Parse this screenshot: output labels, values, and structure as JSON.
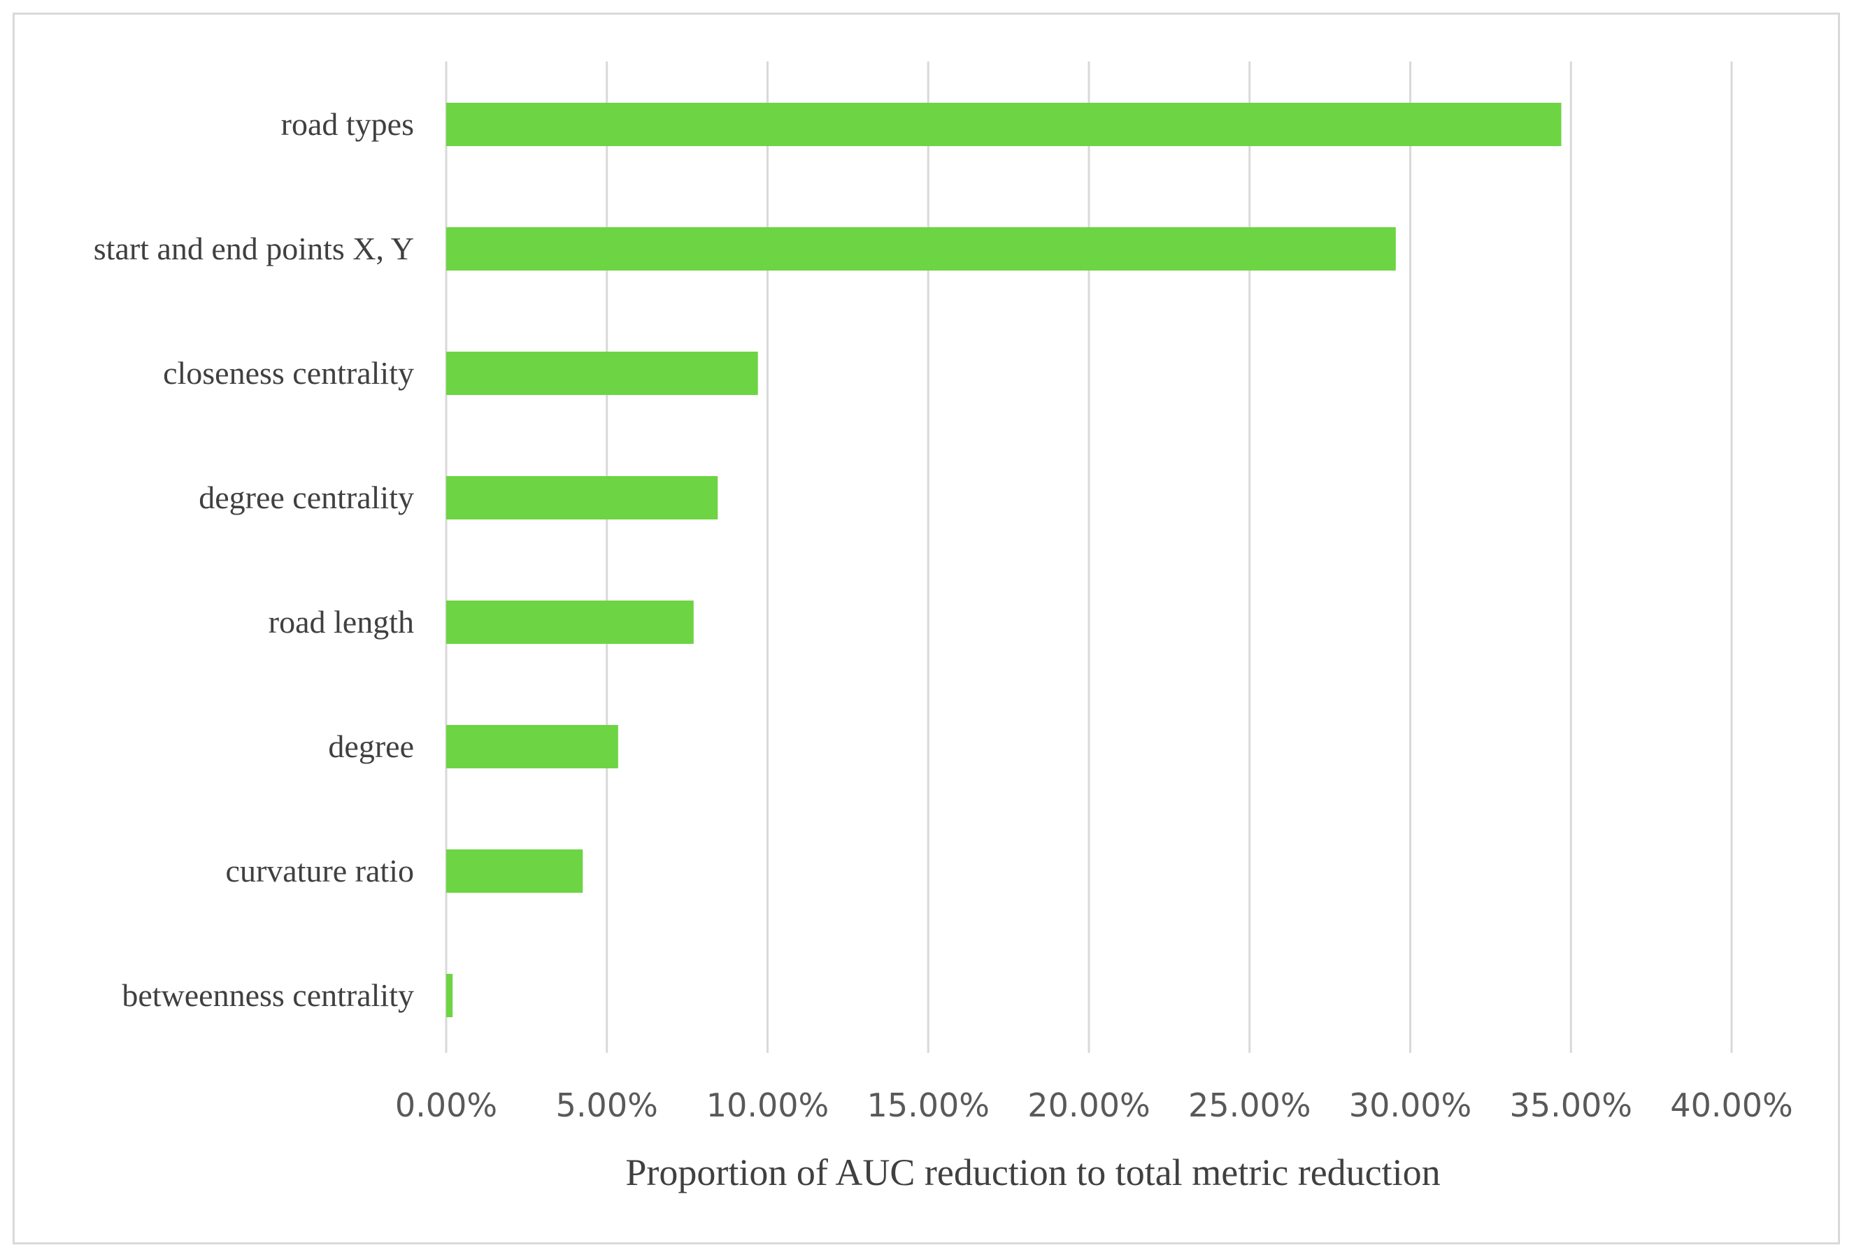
{
  "chart_data": {
    "type": "bar",
    "orientation": "horizontal",
    "categories": [
      "road types",
      "start and end points X, Y",
      "closeness centrality",
      "degree centrality",
      "road length",
      "degree",
      "curvature ratio",
      "betweenness centrality"
    ],
    "values": [
      34.7,
      29.55,
      9.7,
      8.45,
      7.7,
      5.35,
      4.25,
      0.2
    ],
    "title": "",
    "xlabel": "Proportion of AUC reduction to total metric reduction",
    "ylabel": "",
    "xlim": [
      0,
      40
    ],
    "x_ticks": [
      0,
      5,
      10,
      15,
      20,
      25,
      30,
      35,
      40
    ],
    "x_tick_labels": [
      "0.00%",
      "5.00%",
      "10.00%",
      "15.00%",
      "20.00%",
      "25.00%",
      "30.00%",
      "35.00%",
      "40.00%"
    ],
    "bar_color": "#6dd444",
    "grid": "vertical",
    "legend": "none"
  }
}
